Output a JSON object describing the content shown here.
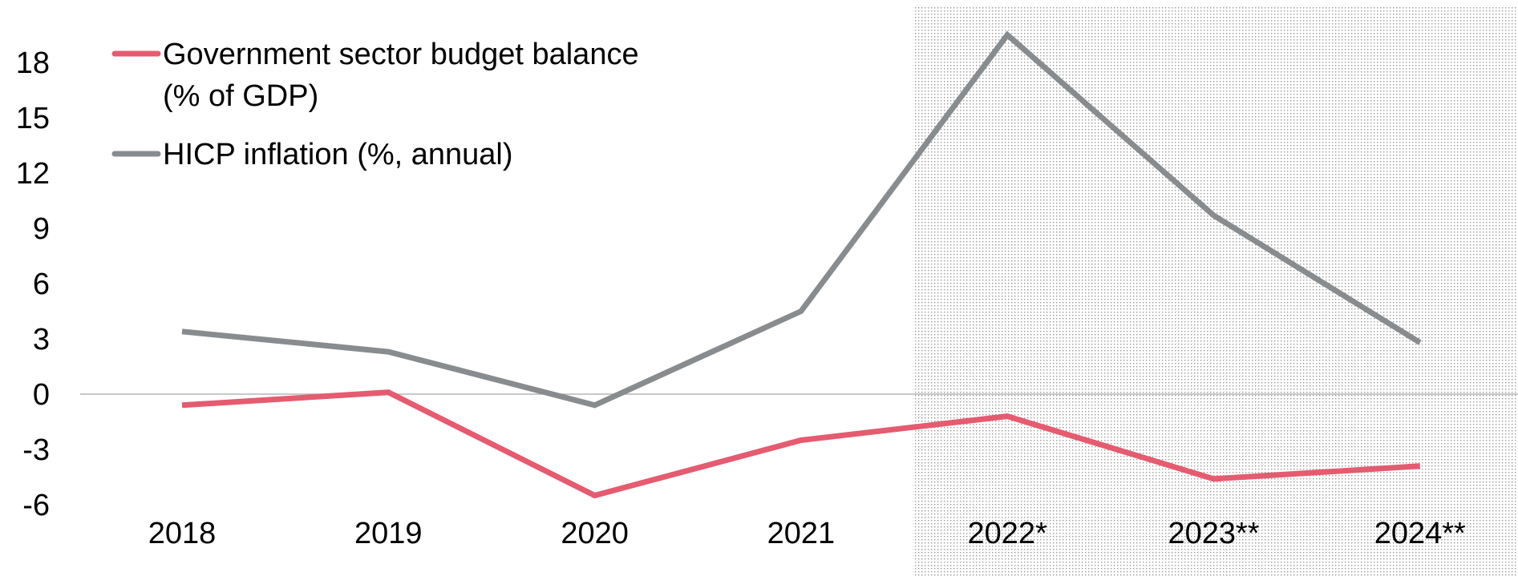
{
  "chart_data": {
    "type": "line",
    "categories": [
      "2018",
      "2019",
      "2020",
      "2021",
      "2022*",
      "2023**",
      "2024**"
    ],
    "series": [
      {
        "name": "Government sector budget balance (% of GDP)",
        "name_lines": [
          "Government sector budget balance",
          "(% of GDP)"
        ],
        "values": [
          -0.6,
          0.1,
          -5.5,
          -2.5,
          -1.2,
          -4.6,
          -3.9
        ],
        "color": "#e55b70"
      },
      {
        "name": "HICP inflation (%, annual)",
        "name_lines": [
          "HICP inflation (%, annual)"
        ],
        "values": [
          3.4,
          2.3,
          -0.6,
          4.5,
          19.5,
          9.7,
          2.8
        ],
        "color": "#888c8e"
      }
    ],
    "y_ticks": [
      "18",
      "15",
      "12",
      "9",
      "6",
      "3",
      "0",
      "-3",
      "-6"
    ],
    "ylim": [
      -6,
      18
    ],
    "forecast_shading_from": "2022*",
    "forecast_shading_color": "#9a9a9a",
    "zero_line_color": "#b5b5b5",
    "grid": false,
    "legend_position": "top-left",
    "title": "",
    "xlabel": "",
    "ylabel": ""
  }
}
